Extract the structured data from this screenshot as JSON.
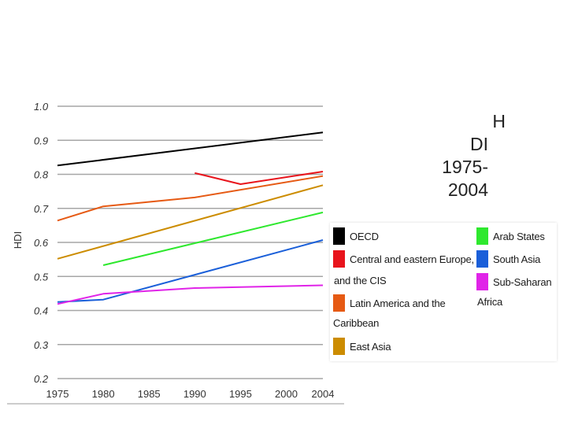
{
  "slide": {
    "title_lines": [
      "H",
      "DI",
      "1975-",
      "2004"
    ]
  },
  "chart_data": {
    "type": "line",
    "ylabel": "HDI",
    "xlabel": "",
    "ylim": [
      0.2,
      1.0
    ],
    "xlim": [
      1975,
      2004
    ],
    "xticks": [
      "1975",
      "1980",
      "1985",
      "1990",
      "1995",
      "2000",
      "2004"
    ],
    "yticks": [
      "1.0",
      "0.9",
      "0.8",
      "0.7",
      "0.6",
      "0.5",
      "0.4",
      "0.3",
      "0.2"
    ],
    "grid": true,
    "legend_position": "right",
    "series": [
      {
        "name": "OECD",
        "color": "#000000",
        "x": [
          1975,
          2004
        ],
        "y": [
          0.826,
          0.923
        ]
      },
      {
        "name": "Central and eastern Europe, and the CIS",
        "color": "#e8141c",
        "x": [
          1990,
          1995,
          2004
        ],
        "y": [
          0.804,
          0.771,
          0.808
        ]
      },
      {
        "name": "Latin America and the Caribbean",
        "color": "#e65a14",
        "x": [
          1975,
          1980,
          1990,
          2004
        ],
        "y": [
          0.664,
          0.706,
          0.732,
          0.795
        ]
      },
      {
        "name": "East Asia",
        "color": "#cc8c00",
        "x": [
          1975,
          2004
        ],
        "y": [
          0.552,
          0.768
        ]
      },
      {
        "name": "Arab States",
        "color": "#2ee82e",
        "x": [
          1980,
          2004
        ],
        "y": [
          0.533,
          0.688
        ]
      },
      {
        "name": "South Asia",
        "color": "#1a5fd9",
        "x": [
          1975,
          1980,
          2004
        ],
        "y": [
          0.425,
          0.432,
          0.607
        ]
      },
      {
        "name": "Sub-Saharan Africa",
        "color": "#e024e8",
        "x": [
          1975,
          1980,
          1990,
          2004
        ],
        "y": [
          0.419,
          0.449,
          0.466,
          0.474
        ]
      }
    ]
  },
  "legend": {
    "items": [
      {
        "line1": "OECD",
        "line2": "",
        "color": "#000000"
      },
      {
        "line1": "Central and eastern Europe,",
        "line2": "and the CIS",
        "color": "#e8141c"
      },
      {
        "line1": "Latin America and the",
        "line2": "Caribbean",
        "color": "#e65a14"
      },
      {
        "line1": "East Asia",
        "line2": "",
        "color": "#cc8c00"
      },
      {
        "line1": "Arab States",
        "line2": "",
        "color": "#2ee82e"
      },
      {
        "line1": "South Asia",
        "line2": "",
        "color": "#1a5fd9"
      },
      {
        "line1": "Sub-Saharan",
        "line2": "Africa",
        "color": "#e024e8"
      }
    ]
  }
}
